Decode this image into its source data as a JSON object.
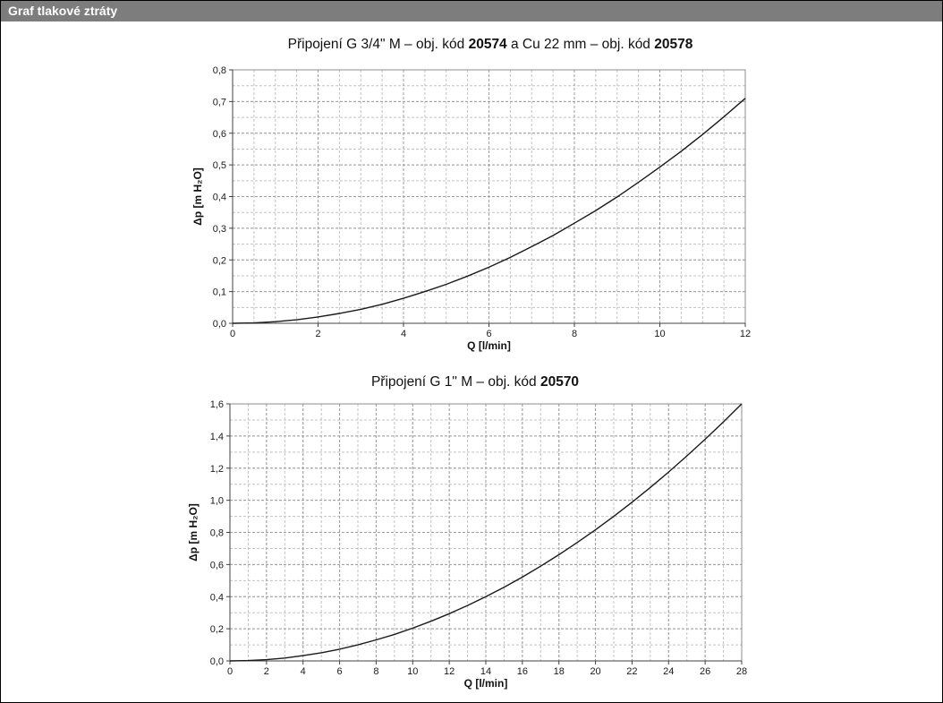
{
  "header": {
    "title": "Graf tlakové ztráty"
  },
  "chart_data": [
    {
      "type": "line",
      "title": "Připojení G 3/4\" M – obj. kód 20574 a Cu 22 mm – obj. kód 20578",
      "title_parts": [
        {
          "text": "Připojení G 3/4\" M – obj. kód ",
          "bold": false
        },
        {
          "text": "20574",
          "bold": true
        },
        {
          "text": " a Cu 22 mm – obj. kód ",
          "bold": false
        },
        {
          "text": "20578",
          "bold": true
        }
      ],
      "xlabel": "Q [l/min]",
      "ylabel": "Δp [m H₂O]",
      "xlim": [
        0,
        12
      ],
      "ylim": [
        0,
        0.8
      ],
      "x_ticks": [
        0,
        2,
        4,
        6,
        8,
        10,
        12
      ],
      "x_tick_labels": [
        "0",
        "2",
        "4",
        "6",
        "8",
        "10",
        "12"
      ],
      "y_ticks": [
        0,
        0.1,
        0.2,
        0.3,
        0.4,
        0.5,
        0.6,
        0.7,
        0.8
      ],
      "y_tick_labels": [
        "0,0",
        "0,1",
        "0,2",
        "0,3",
        "0,4",
        "0,5",
        "0,6",
        "0,7",
        "0,8"
      ],
      "x_minor_step": 0.5,
      "y_minor_step": 0.05,
      "grid": "dashed",
      "line_color": "#1a1a1a",
      "x": [
        0,
        0.5,
        1,
        1.5,
        2,
        2.5,
        3,
        3.5,
        4,
        4.5,
        5,
        5.5,
        6,
        6.5,
        7,
        7.5,
        8,
        8.5,
        9,
        9.5,
        10,
        10.5,
        11,
        11.5,
        12
      ],
      "y": [
        0,
        0.001,
        0.005,
        0.011,
        0.02,
        0.031,
        0.044,
        0.06,
        0.079,
        0.1,
        0.123,
        0.149,
        0.177,
        0.208,
        0.242,
        0.277,
        0.316,
        0.356,
        0.399,
        0.445,
        0.493,
        0.543,
        0.596,
        0.652,
        0.71
      ]
    },
    {
      "type": "line",
      "title": "Připojení G 1\" M – obj. kód 20570",
      "title_parts": [
        {
          "text": "Připojení G 1\" M – obj. kód ",
          "bold": false
        },
        {
          "text": "20570",
          "bold": true
        }
      ],
      "xlabel": "Q [l/min]",
      "ylabel": "Δp [m H₂O]",
      "xlim": [
        0,
        28
      ],
      "ylim": [
        0,
        1.6
      ],
      "x_ticks": [
        0,
        2,
        4,
        6,
        8,
        10,
        12,
        14,
        16,
        18,
        20,
        22,
        24,
        26,
        28
      ],
      "x_tick_labels": [
        "0",
        "2",
        "4",
        "6",
        "8",
        "10",
        "12",
        "14",
        "16",
        "18",
        "20",
        "22",
        "24",
        "26",
        "28"
      ],
      "y_ticks": [
        0,
        0.2,
        0.4,
        0.6,
        0.8,
        1.0,
        1.2,
        1.4,
        1.6
      ],
      "y_tick_labels": [
        "0,0",
        "0,2",
        "0,4",
        "0,6",
        "0,8",
        "1,0",
        "1,2",
        "1,4",
        "1,6"
      ],
      "x_minor_step": 1,
      "y_minor_step": 0.1,
      "grid": "dashed",
      "line_color": "#1a1a1a",
      "x": [
        0,
        1,
        2,
        3,
        4,
        5,
        6,
        7,
        8,
        9,
        10,
        11,
        12,
        13,
        14,
        15,
        16,
        17,
        18,
        19,
        20,
        21,
        22,
        23,
        24,
        25,
        26,
        27,
        28
      ],
      "y": [
        0,
        0.002,
        0.008,
        0.018,
        0.033,
        0.051,
        0.073,
        0.1,
        0.131,
        0.165,
        0.204,
        0.247,
        0.294,
        0.345,
        0.4,
        0.459,
        0.522,
        0.59,
        0.661,
        0.737,
        0.816,
        0.9,
        0.988,
        1.08,
        1.176,
        1.276,
        1.38,
        1.488,
        1.6
      ]
    }
  ]
}
